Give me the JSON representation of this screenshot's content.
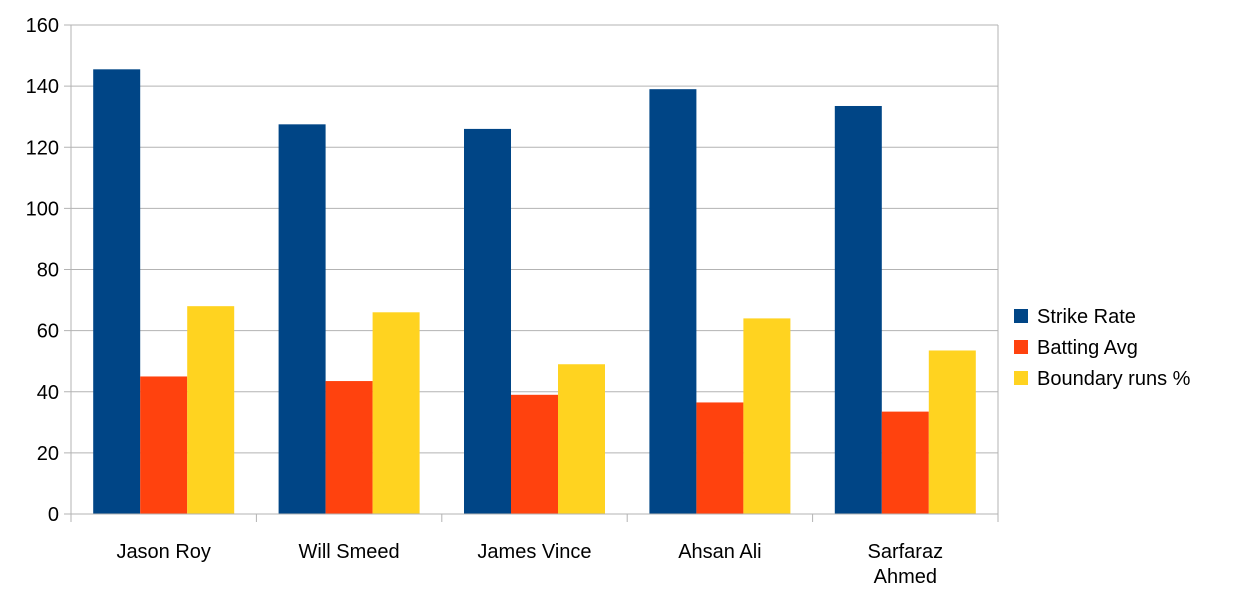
{
  "chart_data": {
    "type": "bar",
    "title": "",
    "xlabel": "",
    "ylabel": "",
    "categories": [
      [
        "Jason Roy"
      ],
      [
        "Will Smeed"
      ],
      [
        "James Vince"
      ],
      [
        "Ahsan Ali"
      ],
      [
        "Sarfaraz",
        "Ahmed"
      ]
    ],
    "series": [
      {
        "name": "Strike Rate",
        "color": "#004586",
        "values": [
          145.5,
          127.5,
          126,
          139,
          133.5
        ]
      },
      {
        "name": "Batting Avg",
        "color": "#ff420e",
        "values": [
          45,
          43.5,
          39,
          36.5,
          33.5
        ]
      },
      {
        "name": "Boundary runs %",
        "color": "#ffd320",
        "values": [
          68,
          66,
          49,
          64,
          53.5
        ]
      }
    ],
    "ylim": [
      0,
      160
    ],
    "yticks": [
      0,
      20,
      40,
      60,
      80,
      100,
      120,
      140,
      160
    ],
    "grid": true,
    "legend_position": "right"
  }
}
